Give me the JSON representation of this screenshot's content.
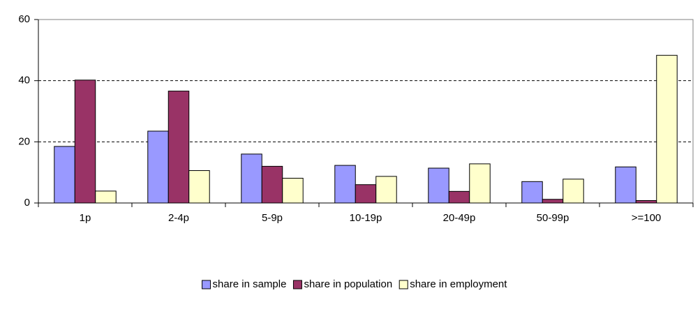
{
  "chart_data": {
    "type": "bar",
    "categories": [
      "1p",
      "2-4p",
      "5-9p",
      "10-19p",
      "20-49p",
      "50-99p",
      ">=100"
    ],
    "series": [
      {
        "name": "share in sample",
        "color": "#9999ff",
        "values": [
          18.5,
          23.5,
          16,
          12.3,
          11.4,
          7,
          11.8
        ]
      },
      {
        "name": "share in population",
        "color": "#993366",
        "values": [
          40.2,
          36.6,
          12,
          6,
          3.8,
          1.2,
          0.8
        ]
      },
      {
        "name": "share in employment",
        "color": "#ffffcc",
        "values": [
          3.9,
          10.6,
          8.1,
          8.7,
          12.8,
          7.8,
          48.3
        ]
      }
    ],
    "ylim": [
      0,
      60
    ],
    "yticks": [
      0,
      20,
      40,
      60
    ],
    "grid": true,
    "legend": "bottom"
  }
}
